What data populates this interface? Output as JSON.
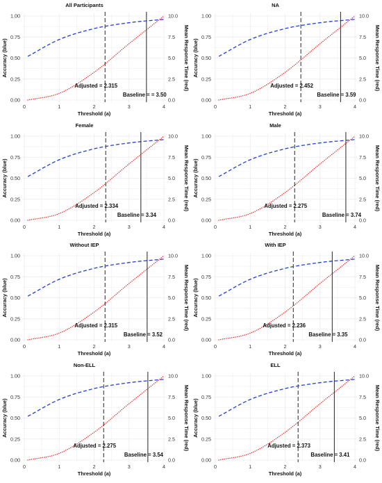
{
  "colors": {
    "accuracy": "#1f3fd6",
    "response_time": "#e8231e",
    "adjusted_line": "#555555",
    "baseline_line": "#222222",
    "grid": "#ebebeb"
  },
  "chart_data": [
    {
      "type": "line",
      "title": "All Participants",
      "xlabel": "Threshold (a)",
      "ylabel_left": "Accuracy (blue)",
      "ylabel_right": "Mean Response Time (red)",
      "xlim": [
        0,
        4
      ],
      "ylim_left": [
        0,
        1
      ],
      "ylim_right": [
        0,
        10
      ],
      "x_ticks": [
        "0",
        "1",
        "2",
        "3",
        "4"
      ],
      "y_ticks_left": [
        "0.00",
        "0.25",
        "0.50",
        "0.75",
        "1.00"
      ],
      "y_ticks_right": [
        "0.0",
        "2.5",
        "5.0",
        "7.5",
        "10.0"
      ],
      "series": [
        {
          "axis": "left",
          "linestyle": "dashed",
          "color": "blue",
          "x": [
            0.1,
            1,
            2,
            3,
            4
          ],
          "y": [
            0.52,
            0.72,
            0.85,
            0.92,
            0.96
          ]
        },
        {
          "axis": "right",
          "linestyle": "dotted",
          "color": "red",
          "x": [
            0.1,
            1,
            2,
            3,
            4
          ],
          "y": [
            0.0,
            0.8,
            3.3,
            6.7,
            10.0
          ]
        }
      ],
      "vlines": [
        {
          "x": 2.315,
          "style": "dashed",
          "label": "Adjusted = 2.315"
        },
        {
          "x": 3.5,
          "style": "solid",
          "label": "Baseline =  = 3.50"
        }
      ]
    },
    {
      "type": "line",
      "title": "NA",
      "xlabel": "Threshold (a)",
      "ylabel_left": "Accuracy (blue)",
      "ylabel_right": "Mean Response Time (red)",
      "xlim": [
        0,
        4
      ],
      "ylim_left": [
        0,
        1
      ],
      "ylim_right": [
        0,
        10
      ],
      "x_ticks": [
        "0",
        "1",
        "2",
        "3",
        "4"
      ],
      "y_ticks_left": [
        "0.00",
        "0.25",
        "0.50",
        "0.75",
        "1.00"
      ],
      "y_ticks_right": [
        "0.0",
        "2.5",
        "5.0",
        "7.5",
        "10.0"
      ],
      "series": [
        {
          "axis": "left",
          "linestyle": "dashed",
          "color": "blue",
          "x": [
            0.1,
            1,
            2,
            3,
            4
          ],
          "y": [
            0.52,
            0.72,
            0.85,
            0.92,
            0.96
          ]
        },
        {
          "axis": "right",
          "linestyle": "dotted",
          "color": "red",
          "x": [
            0.1,
            1,
            2,
            3,
            4
          ],
          "y": [
            0.0,
            0.8,
            3.3,
            6.7,
            10.0
          ]
        }
      ],
      "vlines": [
        {
          "x": 2.452,
          "style": "dashed",
          "label": "Adjusted = 2.452"
        },
        {
          "x": 3.59,
          "style": "solid",
          "label": "Baseline = 3.59"
        }
      ]
    },
    {
      "type": "line",
      "title": "Female",
      "xlabel": "Threshold (a)",
      "ylabel_left": "Accuracy (blue)",
      "ylabel_right": "Mean Response Time (red)",
      "xlim": [
        0,
        4
      ],
      "ylim_left": [
        0,
        1
      ],
      "ylim_right": [
        0,
        10
      ],
      "x_ticks": [
        "0",
        "1",
        "2",
        "3",
        "4"
      ],
      "y_ticks_left": [
        "0.00",
        "0.25",
        "0.50",
        "0.75",
        "1.00"
      ],
      "y_ticks_right": [
        "0.0",
        "2.5",
        "5.0",
        "7.5",
        "10.0"
      ],
      "series": [
        {
          "axis": "left",
          "linestyle": "dashed",
          "color": "blue",
          "x": [
            0.1,
            1,
            2,
            3,
            4
          ],
          "y": [
            0.52,
            0.72,
            0.85,
            0.92,
            0.96
          ]
        },
        {
          "axis": "right",
          "linestyle": "dotted",
          "color": "red",
          "x": [
            0.1,
            1,
            2,
            3,
            4
          ],
          "y": [
            0.0,
            0.8,
            3.3,
            6.7,
            10.0
          ]
        }
      ],
      "vlines": [
        {
          "x": 2.334,
          "style": "dashed",
          "label": "Adjusted = 2.334"
        },
        {
          "x": 3.34,
          "style": "solid",
          "label": "Baseline = 3.34"
        }
      ]
    },
    {
      "type": "line",
      "title": "Male",
      "xlabel": "Threshold (a)",
      "ylabel_left": "Accuracy (blue)",
      "ylabel_right": "Mean Response Time (red)",
      "xlim": [
        0,
        4
      ],
      "ylim_left": [
        0,
        1
      ],
      "ylim_right": [
        0,
        10
      ],
      "x_ticks": [
        "0",
        "1",
        "2",
        "3",
        "4"
      ],
      "y_ticks_left": [
        "0.00",
        "0.25",
        "0.50",
        "0.75",
        "1.00"
      ],
      "y_ticks_right": [
        "0.0",
        "2.5",
        "5.0",
        "7.5",
        "10.0"
      ],
      "series": [
        {
          "axis": "left",
          "linestyle": "dashed",
          "color": "blue",
          "x": [
            0.1,
            1,
            2,
            3,
            4
          ],
          "y": [
            0.52,
            0.72,
            0.85,
            0.92,
            0.96
          ]
        },
        {
          "axis": "right",
          "linestyle": "dotted",
          "color": "red",
          "x": [
            0.1,
            1,
            2,
            3,
            4
          ],
          "y": [
            0.0,
            0.8,
            3.3,
            6.7,
            10.0
          ]
        }
      ],
      "vlines": [
        {
          "x": 2.275,
          "style": "dashed",
          "label": "Adjusted = 2.275"
        },
        {
          "x": 3.74,
          "style": "solid",
          "label": "Baseline = 3.74"
        }
      ]
    },
    {
      "type": "line",
      "title": "Without IEP",
      "xlabel": "Threshold (a)",
      "ylabel_left": "Accuracy (blue)",
      "ylabel_right": "Mean Response Time (red)",
      "xlim": [
        0,
        4
      ],
      "ylim_left": [
        0,
        1
      ],
      "ylim_right": [
        0,
        10
      ],
      "x_ticks": [
        "0",
        "1",
        "2",
        "3",
        "4"
      ],
      "y_ticks_left": [
        "0.00",
        "0.25",
        "0.50",
        "0.75",
        "1.00"
      ],
      "y_ticks_right": [
        "0.0",
        "2.5",
        "5.0",
        "7.5",
        "10.0"
      ],
      "series": [
        {
          "axis": "left",
          "linestyle": "dashed",
          "color": "blue",
          "x": [
            0.1,
            1,
            2,
            3,
            4
          ],
          "y": [
            0.52,
            0.72,
            0.85,
            0.92,
            0.96
          ]
        },
        {
          "axis": "right",
          "linestyle": "dotted",
          "color": "red",
          "x": [
            0.1,
            1,
            2,
            3,
            4
          ],
          "y": [
            0.0,
            0.8,
            3.3,
            6.7,
            10.0
          ]
        }
      ],
      "vlines": [
        {
          "x": 2.315,
          "style": "dashed",
          "label": "Adjusted = 2.315"
        },
        {
          "x": 3.52,
          "style": "solid",
          "label": "Baseline = 3.52"
        }
      ]
    },
    {
      "type": "line",
      "title": "With IEP",
      "xlabel": "Threshold (a)",
      "ylabel_left": "Accuracy (blue)",
      "ylabel_right": "Mean Response Time (red)",
      "xlim": [
        0,
        4
      ],
      "ylim_left": [
        0,
        1
      ],
      "ylim_right": [
        0,
        10
      ],
      "x_ticks": [
        "0",
        "1",
        "2",
        "3",
        "4"
      ],
      "y_ticks_left": [
        "0.00",
        "0.25",
        "0.50",
        "0.75",
        "1.00"
      ],
      "y_ticks_right": [
        "0.0",
        "2.5",
        "5.0",
        "7.5",
        "10.0"
      ],
      "series": [
        {
          "axis": "left",
          "linestyle": "dashed",
          "color": "blue",
          "x": [
            0.1,
            1,
            2,
            3,
            4
          ],
          "y": [
            0.52,
            0.72,
            0.85,
            0.92,
            0.96
          ]
        },
        {
          "axis": "right",
          "linestyle": "dotted",
          "color": "red",
          "x": [
            0.1,
            1,
            2,
            3,
            4
          ],
          "y": [
            0.0,
            0.8,
            3.3,
            6.7,
            10.0
          ]
        }
      ],
      "vlines": [
        {
          "x": 2.236,
          "style": "dashed",
          "label": "Adjusted = 2.236"
        },
        {
          "x": 3.35,
          "style": "solid",
          "label": "Baseline = 3.35"
        }
      ]
    },
    {
      "type": "line",
      "title": "Non-ELL",
      "xlabel": "Threshold (a)",
      "ylabel_left": "Accuracy (blue)",
      "ylabel_right": "Mean Response Time (red)",
      "xlim": [
        0,
        4
      ],
      "ylim_left": [
        0,
        1
      ],
      "ylim_right": [
        0,
        10
      ],
      "x_ticks": [
        "0",
        "1",
        "2",
        "3",
        "4"
      ],
      "y_ticks_left": [
        "0.00",
        "0.25",
        "0.50",
        "0.75",
        "1.00"
      ],
      "y_ticks_right": [
        "0.0",
        "2.5",
        "5.0",
        "7.5",
        "10.0"
      ],
      "series": [
        {
          "axis": "left",
          "linestyle": "dashed",
          "color": "blue",
          "x": [
            0.1,
            1,
            2,
            3,
            4
          ],
          "y": [
            0.52,
            0.72,
            0.85,
            0.92,
            0.96
          ]
        },
        {
          "axis": "right",
          "linestyle": "dotted",
          "color": "red",
          "x": [
            0.1,
            1,
            2,
            3,
            4
          ],
          "y": [
            0.0,
            0.8,
            3.3,
            6.7,
            10.0
          ]
        }
      ],
      "vlines": [
        {
          "x": 2.275,
          "style": "dashed",
          "label": "Adjusted = 2.275"
        },
        {
          "x": 3.54,
          "style": "solid",
          "label": "Baseline = 3.54"
        }
      ]
    },
    {
      "type": "line",
      "title": "ELL",
      "xlabel": "Threshold (a)",
      "ylabel_left": "Accuracy (blue)",
      "ylabel_right": "Mean Response Time (red)",
      "xlim": [
        0,
        4
      ],
      "ylim_left": [
        0,
        1
      ],
      "ylim_right": [
        0,
        10
      ],
      "x_ticks": [
        "0",
        "1",
        "2",
        "3",
        "4"
      ],
      "y_ticks_left": [
        "0.00",
        "0.25",
        "0.50",
        "0.75",
        "1.00"
      ],
      "y_ticks_right": [
        "0.0",
        "2.5",
        "5.0",
        "7.5",
        "10.0"
      ],
      "series": [
        {
          "axis": "left",
          "linestyle": "dashed",
          "color": "blue",
          "x": [
            0.1,
            1,
            2,
            3,
            4
          ],
          "y": [
            0.52,
            0.72,
            0.85,
            0.92,
            0.96
          ]
        },
        {
          "axis": "right",
          "linestyle": "dotted",
          "color": "red",
          "x": [
            0.1,
            1,
            2,
            3,
            4
          ],
          "y": [
            0.0,
            0.8,
            3.3,
            6.7,
            10.0
          ]
        }
      ],
      "vlines": [
        {
          "x": 2.373,
          "style": "dashed",
          "label": "Adjusted = 2.373"
        },
        {
          "x": 3.41,
          "style": "solid",
          "label": "Baseline = 3.41"
        }
      ]
    }
  ]
}
